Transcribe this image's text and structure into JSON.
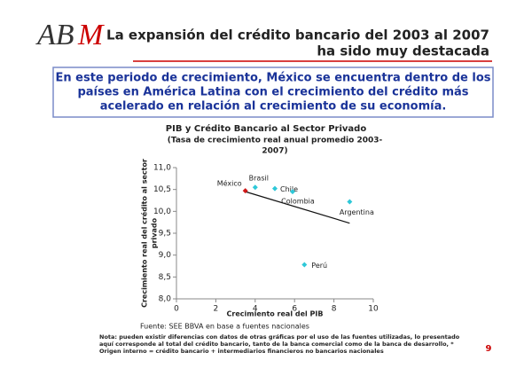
{
  "logo": {
    "text": "AB",
    "accent": "M"
  },
  "header": {
    "title": [
      "La expansión del crédito bancario del 2003 al 2007",
      "ha sido muy destacada"
    ]
  },
  "callout": [
    "En este periodo de crecimiento, México se encuentra dentro de los",
    "países en América Latina con el crecimiento del crédito más",
    "acelerado en relación al crecimiento de su economía."
  ],
  "chart_data": {
    "type": "scatter",
    "title": "PIB y Crédito Bancario al Sector Privado",
    "subtitle": [
      "(Tasa de crecimiento real anual promedio 2003-",
      "2007)"
    ],
    "xlabel": "Crecimiento real del PIB",
    "ylabel": [
      "Crecimiento real del crédito al sector",
      "privado"
    ],
    "labels": [
      "México",
      "Brasil",
      "Chile",
      "Colombia",
      "Argentina",
      "Perú"
    ],
    "x": [
      3.5,
      4.0,
      5.0,
      5.9,
      8.8,
      6.5
    ],
    "y": [
      10.47,
      10.55,
      10.52,
      10.45,
      10.22,
      8.78
    ],
    "colors": [
      "#d01818",
      "#2ec8d8",
      "#2ec8d8",
      "#2ec8d8",
      "#2ec8d8",
      "#2ec8d8"
    ],
    "trendline": {
      "x": [
        3.5,
        8.8
      ],
      "y": [
        10.45,
        9.73
      ]
    },
    "xlim": [
      0,
      10
    ],
    "xticks": [
      0,
      2,
      4,
      6,
      8,
      10
    ],
    "ylim": [
      8,
      11
    ],
    "yticks": [
      {
        "value": 8,
        "label": "8,0"
      },
      {
        "value": 8.5,
        "label": "8,5"
      },
      {
        "value": 9,
        "label": "9,0"
      },
      {
        "value": 9.5,
        "label": "9,5"
      },
      {
        "value": 10,
        "label": "10,0"
      },
      {
        "value": 10.5,
        "label": "10,5"
      },
      {
        "value": 11,
        "label": "11,0"
      }
    ]
  },
  "source": "Fuente: SEE BBVA en base a fuentes nacionales",
  "note": [
    "Nota: pueden existir diferencias con datos de otras gráficas por el uso de las fuentes utilizadas, lo presentado",
    "aquí corresponde al total del crédito bancario, tanto de la banca comercial como de la banca de desarrollo, *",
    "Origen interno = crédito bancario + intermediarios financieros no bancarios nacionales"
  ],
  "page_number": "9"
}
